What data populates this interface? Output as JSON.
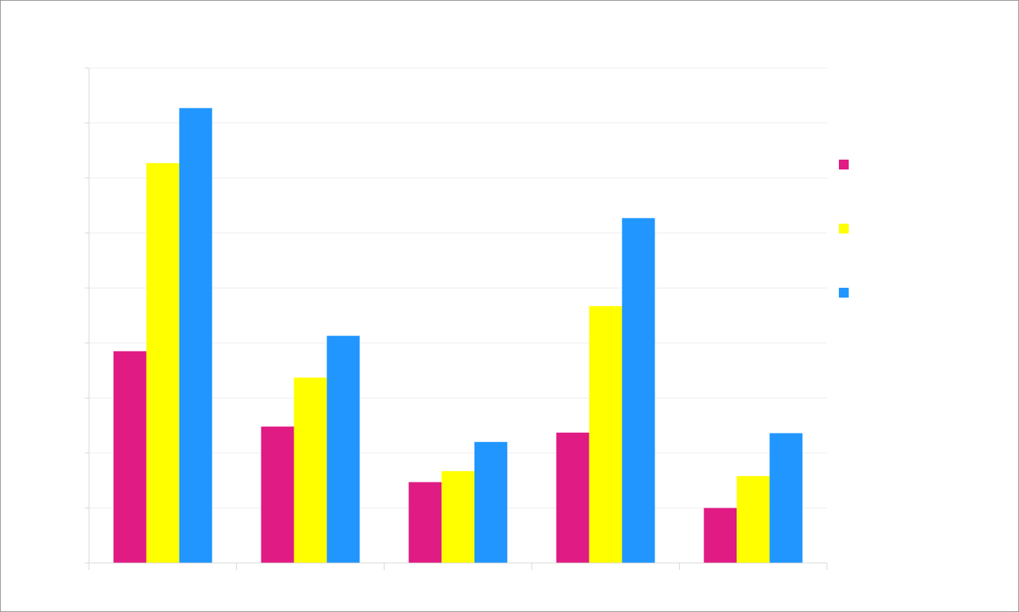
{
  "chart_data": {
    "type": "bar",
    "title": "",
    "xlabel": "",
    "ylabel": "",
    "categories": [
      "",
      "",
      "",
      "",
      ""
    ],
    "series": [
      {
        "color": "#e01b84",
        "values": [
          3.85,
          2.48,
          1.47,
          2.37,
          1.0
        ]
      },
      {
        "color": "#ffff00",
        "values": [
          7.27,
          3.37,
          1.67,
          4.67,
          1.58
        ]
      },
      {
        "color": "#2196ff",
        "values": [
          8.27,
          4.13,
          2.2,
          6.27,
          2.36
        ]
      }
    ],
    "ylim": [
      0,
      9
    ],
    "y_ticks": 9,
    "grid": true,
    "legend_position": "right"
  }
}
